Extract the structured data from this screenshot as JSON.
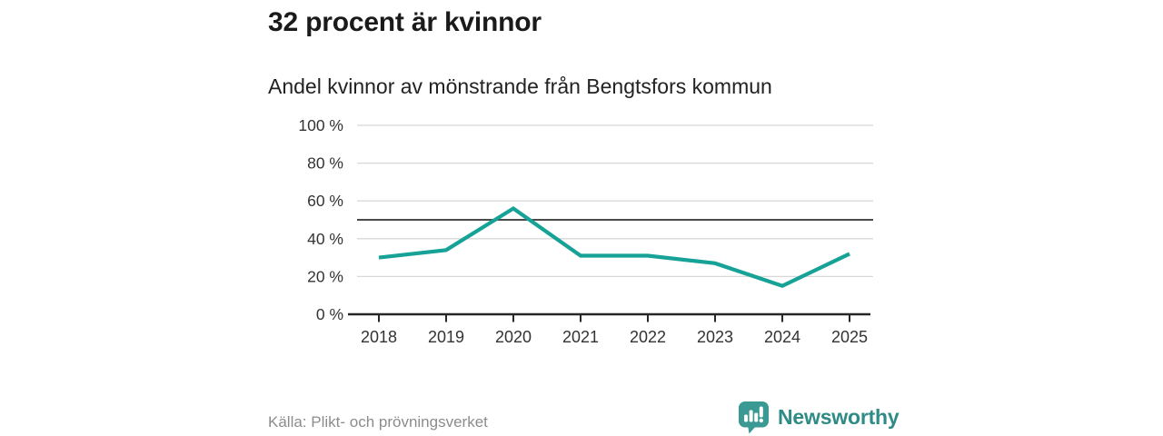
{
  "page": {
    "source": "Källa: Plikt- och prövningsverket",
    "brand": {
      "name": "Newsworthy",
      "icon": "newsworthy-speech-bubble-bar-chart-icon"
    }
  },
  "colors": {
    "title_text": "#1a1a1a",
    "body_text": "#222222",
    "axis_text": "#333333",
    "muted_text": "#8c8c8c",
    "grid": "#d8d8d8",
    "reference": "#4a4a4a",
    "axis": "#262626",
    "line": "#16a296",
    "brand": "#3a9a93",
    "brand_text": "#2e8b85"
  },
  "chart_data": {
    "type": "line",
    "title": "32 procent är kvinnor",
    "subtitle": "Andel kvinnor av mönstrande från Bengtsfors kommun",
    "x": [
      "2018",
      "2019",
      "2020",
      "2021",
      "2022",
      "2023",
      "2024",
      "2025"
    ],
    "series": [
      {
        "name": "Andel kvinnor av mönstrande",
        "values": [
          30,
          34,
          56,
          31,
          31,
          27,
          15,
          32
        ]
      }
    ],
    "unit": "%",
    "ylim": [
      0,
      100
    ],
    "yticks": [
      0,
      20,
      40,
      60,
      80,
      100
    ],
    "ytick_suffix": " %",
    "reference_line": 50,
    "grid": true,
    "legend": "none"
  }
}
